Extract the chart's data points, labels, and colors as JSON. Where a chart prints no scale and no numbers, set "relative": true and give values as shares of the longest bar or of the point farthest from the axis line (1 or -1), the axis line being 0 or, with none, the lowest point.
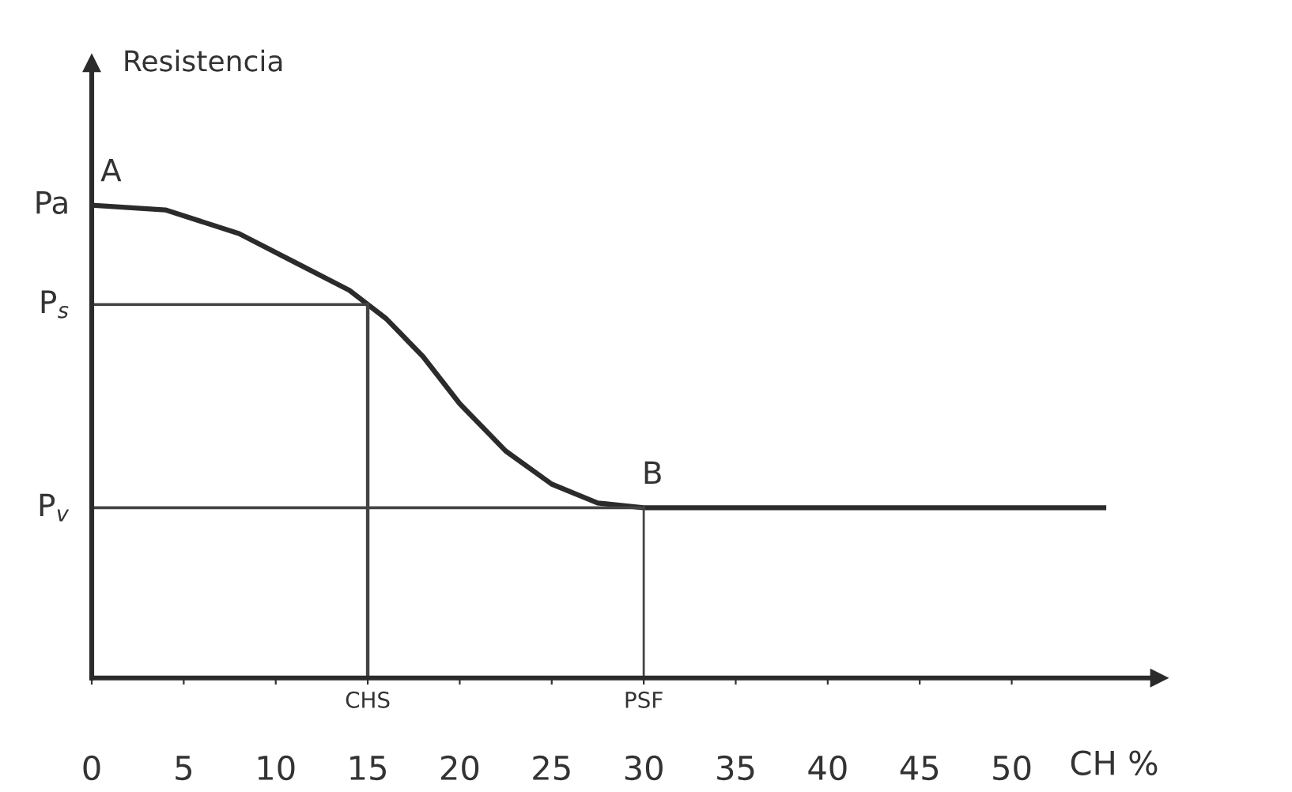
{
  "chart_data": {
    "type": "line",
    "relative": true,
    "ylabel": "Resistencia",
    "xlabel": "CH %",
    "xlim": [
      0,
      58
    ],
    "xticks": [
      0,
      5,
      10,
      15,
      20,
      25,
      30,
      35,
      40,
      45,
      50
    ],
    "series": [
      {
        "color": "#2b2b2b",
        "x": [
          0,
          4,
          8,
          11,
          14,
          16,
          18,
          20,
          22.5,
          25,
          27.5,
          30,
          55
        ],
        "values": [
          1,
          0.99,
          0.94,
          0.88,
          0.82,
          0.76,
          0.68,
          0.58,
          0.48,
          0.41,
          0.37,
          0.36,
          0.36
        ]
      }
    ],
    "ref_lines": [
      {
        "axis": "y",
        "value": 0.79,
        "label": "P$_{s}$"
      },
      {
        "axis": "y",
        "value": 0.36,
        "label": "P$_{v}$"
      },
      {
        "axis": "x",
        "value": 15,
        "label": "CHS"
      },
      {
        "axis": "x",
        "value": 30,
        "label": "PSF"
      }
    ],
    "annotations": [
      "Pa",
      {
        "text": "A",
        "x": 0,
        "y": 1
      },
      {
        "text": "B",
        "x": 30,
        "y": 0.36
      }
    ],
    "grid": false,
    "marker": "none",
    "line_style": "solid"
  }
}
